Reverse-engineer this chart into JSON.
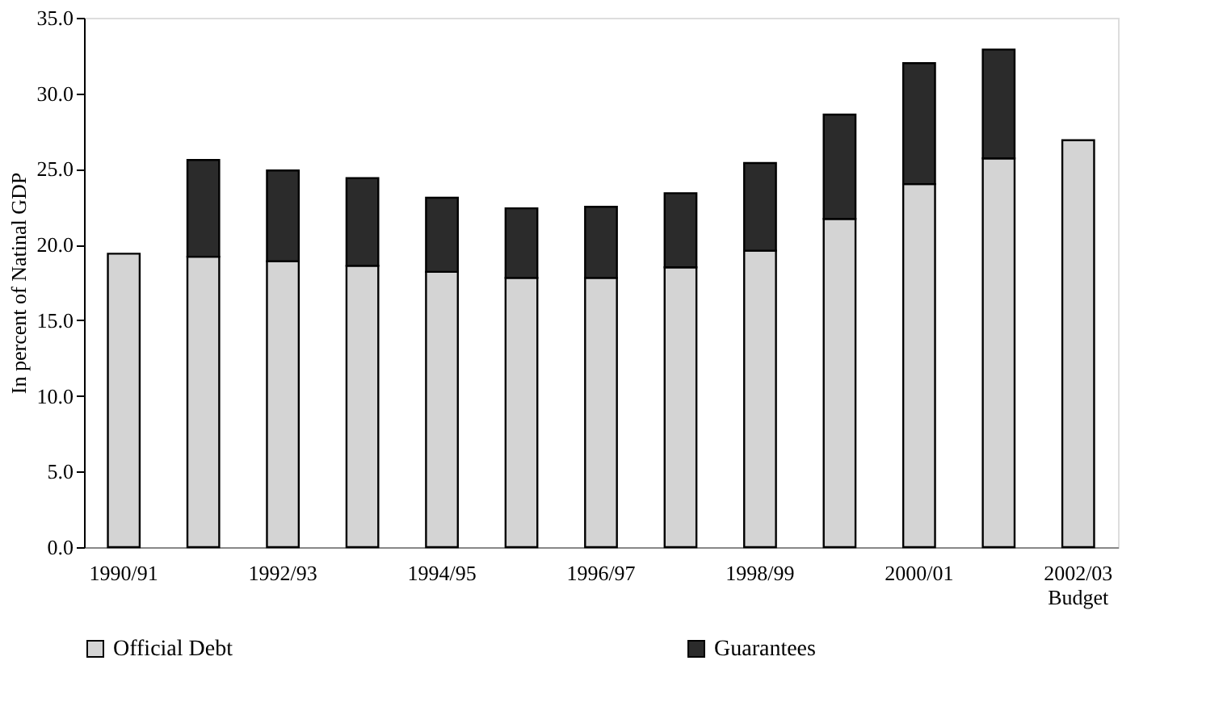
{
  "chart_data": {
    "type": "bar",
    "stacked": true,
    "ylabel": "In percent of Natinal GDP",
    "categories": [
      "1990/91",
      null,
      "1992/93",
      null,
      "1994/95",
      null,
      "1996/97",
      null,
      "1998/99",
      null,
      "2000/01",
      null,
      "2002/03 Budget"
    ],
    "series": [
      {
        "name": "Official Debt",
        "color": "#d4d4d4",
        "values": [
          19.4,
          19.2,
          18.9,
          18.6,
          18.2,
          17.8,
          17.8,
          18.5,
          19.6,
          21.7,
          24.0,
          25.7,
          26.9
        ]
      },
      {
        "name": "Guarantees",
        "color": "#2b2b2b",
        "values": [
          null,
          6.4,
          6.0,
          5.8,
          4.9,
          4.6,
          4.7,
          4.9,
          5.8,
          6.9,
          8.0,
          7.2,
          null
        ]
      }
    ],
    "ylim": [
      0,
      35
    ],
    "yticks": [
      {
        "value": 0,
        "label": "0.0"
      },
      {
        "value": 5,
        "label": "5.0"
      },
      {
        "value": 10,
        "label": "10.0"
      },
      {
        "value": 15,
        "label": "15.0"
      },
      {
        "value": 20,
        "label": "20.0"
      },
      {
        "value": 25,
        "label": "25.0"
      },
      {
        "value": 30,
        "label": "30.0"
      },
      {
        "value": 35,
        "label": "35.0"
      }
    ],
    "grid": false,
    "legend": "bottom"
  }
}
